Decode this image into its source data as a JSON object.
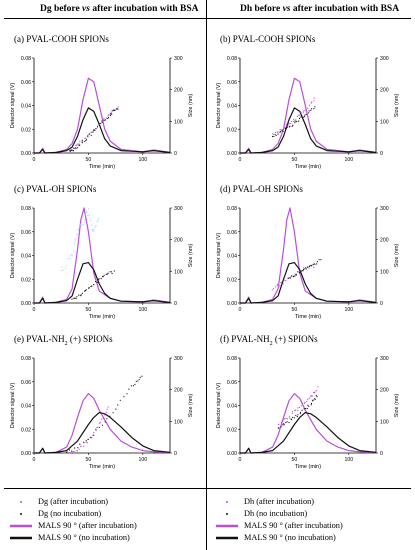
{
  "header": {
    "left_title": "Dg before vs after incubation with BSA",
    "right_title": "Dh before vs after incubation with BSA"
  },
  "axes": {
    "y_left_label": "Detector signal (V)",
    "y_right_label": "Size (nm)",
    "x_label": "Time (min)",
    "y_left_ticks": [
      "0.00",
      "0.02",
      "0.04",
      "0.06",
      "0.08"
    ],
    "y_right_ticks": [
      "0",
      "100",
      "200",
      "300"
    ],
    "x_ticks": [
      "0",
      "50",
      "100"
    ]
  },
  "colors": {
    "after": "#b94fd9",
    "none": "#111111",
    "after_dots_left": "#a9d6ff"
  },
  "legend": {
    "left": [
      "Dg (after incubation)",
      "Dg (no incubation)",
      "MALS 90 ° (after incubation)",
      "MALS 90 ° (no incubation)"
    ],
    "right": [
      "Dh (after incubation)",
      "Dh (no incubation)",
      "MALS 90 ° (after incubation)",
      "MALS 90 ° (no incubation)"
    ]
  },
  "chart_data": [
    {
      "panel_label": "(a) PVAL-COOH SPIONs",
      "type": "line",
      "xlim": [
        0,
        125
      ],
      "ylim": [
        0,
        0.08
      ],
      "y2lim": [
        0,
        300
      ],
      "series": [
        {
          "name": "MALS 90 ° (after incubation)",
          "axis": "left",
          "x": [
            0,
            5,
            8,
            10,
            20,
            30,
            35,
            40,
            45,
            50,
            55,
            60,
            65,
            70,
            80,
            100,
            110,
            125
          ],
          "y": [
            0.0,
            0.0,
            0.004,
            0.0,
            0.0005,
            0.003,
            0.008,
            0.02,
            0.045,
            0.063,
            0.06,
            0.04,
            0.02,
            0.01,
            0.003,
            0.001,
            0.0025,
            0.0005
          ]
        },
        {
          "name": "MALS 90 ° (no incubation)",
          "axis": "left",
          "x": [
            0,
            5,
            8,
            10,
            20,
            30,
            35,
            40,
            45,
            50,
            55,
            60,
            65,
            70,
            80,
            100,
            110,
            125
          ],
          "y": [
            0.0,
            0.0,
            0.003,
            0.0,
            0.0004,
            0.002,
            0.005,
            0.014,
            0.028,
            0.038,
            0.035,
            0.024,
            0.012,
            0.006,
            0.002,
            0.001,
            0.002,
            0.0004
          ]
        },
        {
          "name": "Dg (after incubation)",
          "axis": "right",
          "x": [
            33,
            40,
            50,
            60,
            70,
            78
          ],
          "y": [
            5,
            25,
            55,
            90,
            125,
            150
          ]
        },
        {
          "name": "Dg (no incubation)",
          "axis": "right",
          "x": [
            33,
            40,
            50,
            60,
            70,
            78
          ],
          "y": [
            3,
            20,
            50,
            85,
            120,
            145
          ]
        }
      ]
    },
    {
      "panel_label": "(b) PVAL-COOH SPIONs",
      "type": "line",
      "xlim": [
        0,
        125
      ],
      "ylim": [
        0,
        0.08
      ],
      "y2lim": [
        0,
        300
      ],
      "series": [
        {
          "name": "MALS 90 ° (after incubation)",
          "axis": "left",
          "x": [
            0,
            5,
            8,
            10,
            20,
            30,
            35,
            40,
            45,
            50,
            55,
            60,
            65,
            70,
            80,
            100,
            110,
            125
          ],
          "y": [
            0.0,
            0.0,
            0.004,
            0.0,
            0.0005,
            0.003,
            0.008,
            0.02,
            0.045,
            0.063,
            0.06,
            0.04,
            0.02,
            0.01,
            0.003,
            0.001,
            0.0025,
            0.0005
          ]
        },
        {
          "name": "MALS 90 ° (no incubation)",
          "axis": "left",
          "x": [
            0,
            5,
            8,
            10,
            20,
            30,
            35,
            40,
            45,
            50,
            55,
            60,
            65,
            70,
            80,
            100,
            110,
            125
          ],
          "y": [
            0.0,
            0.0,
            0.003,
            0.0,
            0.0004,
            0.002,
            0.005,
            0.014,
            0.028,
            0.038,
            0.035,
            0.024,
            0.012,
            0.006,
            0.002,
            0.001,
            0.002,
            0.0004
          ]
        },
        {
          "name": "Dh (after incubation)",
          "axis": "right",
          "x": [
            30,
            40,
            50,
            60,
            70
          ],
          "y": [
            60,
            80,
            105,
            135,
            175
          ]
        },
        {
          "name": "Dh (no incubation)",
          "axis": "right",
          "x": [
            30,
            40,
            50,
            60,
            70
          ],
          "y": [
            50,
            70,
            95,
            120,
            150
          ]
        }
      ]
    },
    {
      "panel_label": "(c) PVAL-OH SPIONs",
      "type": "line",
      "xlim": [
        0,
        125
      ],
      "ylim": [
        0,
        0.08
      ],
      "y2lim": [
        0,
        300
      ],
      "series": [
        {
          "name": "MALS 90 ° (after incubation)",
          "axis": "left",
          "x": [
            0,
            5,
            8,
            10,
            20,
            30,
            35,
            40,
            43,
            46,
            50,
            55,
            60,
            70,
            80,
            100,
            110,
            125
          ],
          "y": [
            0.0,
            0.0,
            0.005,
            0.0,
            0.0005,
            0.003,
            0.012,
            0.045,
            0.07,
            0.08,
            0.06,
            0.025,
            0.01,
            0.004,
            0.0015,
            0.001,
            0.0025,
            0.0005
          ]
        },
        {
          "name": "MALS 90 ° (no incubation)",
          "axis": "left",
          "x": [
            0,
            5,
            8,
            10,
            20,
            30,
            35,
            40,
            45,
            50,
            55,
            60,
            65,
            70,
            80,
            100,
            110,
            125
          ],
          "y": [
            0.0,
            0.0,
            0.004,
            0.0,
            0.0005,
            0.002,
            0.006,
            0.02,
            0.033,
            0.034,
            0.028,
            0.016,
            0.008,
            0.004,
            0.0015,
            0.001,
            0.002,
            0.0004
          ]
        },
        {
          "name": "Dg (after incubation)",
          "axis": "right",
          "x": [
            25,
            35,
            40,
            45,
            50,
            55,
            60
          ],
          "y": [
            100,
            150,
            220,
            260,
            290,
            220,
            280
          ]
        },
        {
          "name": "Dg (no incubation)",
          "axis": "right",
          "x": [
            35,
            45,
            55,
            65,
            75
          ],
          "y": [
            10,
            30,
            60,
            90,
            100
          ]
        }
      ]
    },
    {
      "panel_label": "(d) PVAL-OH SPIONs",
      "type": "line",
      "xlim": [
        0,
        125
      ],
      "ylim": [
        0,
        0.08
      ],
      "y2lim": [
        0,
        300
      ],
      "series": [
        {
          "name": "MALS 90 ° (after incubation)",
          "axis": "left",
          "x": [
            0,
            5,
            8,
            10,
            20,
            30,
            35,
            40,
            43,
            46,
            50,
            55,
            60,
            70,
            80,
            100,
            110,
            125
          ],
          "y": [
            0.0,
            0.0,
            0.005,
            0.0,
            0.0005,
            0.003,
            0.012,
            0.045,
            0.07,
            0.08,
            0.06,
            0.025,
            0.01,
            0.004,
            0.0015,
            0.001,
            0.0025,
            0.0005
          ]
        },
        {
          "name": "MALS 90 ° (no incubation)",
          "axis": "left",
          "x": [
            0,
            5,
            8,
            10,
            20,
            30,
            35,
            40,
            45,
            50,
            55,
            60,
            65,
            70,
            80,
            100,
            110,
            125
          ],
          "y": [
            0.0,
            0.0,
            0.004,
            0.0,
            0.0005,
            0.002,
            0.006,
            0.02,
            0.033,
            0.034,
            0.028,
            0.016,
            0.008,
            0.004,
            0.0015,
            0.001,
            0.002,
            0.0004
          ]
        },
        {
          "name": "Dh (after incubation)",
          "axis": "right",
          "x": [
            30,
            40,
            50,
            60,
            70
          ],
          "y": [
            45,
            65,
            90,
            110,
            120
          ]
        },
        {
          "name": "Dh (no incubation)",
          "axis": "right",
          "x": [
            45,
            55,
            65,
            75
          ],
          "y": [
            80,
            95,
            115,
            140
          ]
        }
      ]
    },
    {
      "panel_label": "(e) PVAL-NH2 (+) SPIONs",
      "type": "line",
      "xlim": [
        0,
        125
      ],
      "ylim": [
        0,
        0.08
      ],
      "y2lim": [
        0,
        300
      ],
      "series": [
        {
          "name": "MALS 90 ° (after incubation)",
          "axis": "left",
          "x": [
            0,
            5,
            8,
            10,
            20,
            30,
            35,
            40,
            45,
            50,
            55,
            60,
            70,
            80,
            90,
            100,
            110,
            125
          ],
          "y": [
            0.0,
            0.0,
            0.004,
            0.0,
            0.0005,
            0.005,
            0.015,
            0.03,
            0.044,
            0.05,
            0.046,
            0.036,
            0.02,
            0.01,
            0.005,
            0.002,
            0.001,
            0.0003
          ]
        },
        {
          "name": "MALS 90 ° (no incubation)",
          "axis": "left",
          "x": [
            0,
            5,
            8,
            10,
            20,
            30,
            40,
            50,
            55,
            60,
            65,
            70,
            80,
            90,
            100,
            110,
            125
          ],
          "y": [
            0.0,
            0.0,
            0.004,
            0.0,
            0.0005,
            0.002,
            0.01,
            0.024,
            0.03,
            0.034,
            0.033,
            0.03,
            0.022,
            0.013,
            0.006,
            0.002,
            0.0005
          ]
        },
        {
          "name": "Dg (after incubation)",
          "axis": "right",
          "x": [
            30,
            40,
            50,
            60,
            70
          ],
          "y": [
            0,
            10,
            40,
            90,
            150
          ]
        },
        {
          "name": "Dg (no incubation)",
          "axis": "right",
          "x": [
            30,
            50,
            70,
            90,
            100
          ],
          "y": [
            0,
            40,
            120,
            210,
            245
          ]
        }
      ]
    },
    {
      "panel_label": "(f) PVAL-NH2 (+) SPIONs",
      "type": "line",
      "xlim": [
        0,
        125
      ],
      "ylim": [
        0,
        0.08
      ],
      "y2lim": [
        0,
        300
      ],
      "series": [
        {
          "name": "MALS 90 ° (after incubation)",
          "axis": "left",
          "x": [
            0,
            5,
            8,
            10,
            20,
            30,
            35,
            40,
            45,
            50,
            55,
            60,
            70,
            80,
            90,
            100,
            110,
            125
          ],
          "y": [
            0.0,
            0.0,
            0.004,
            0.0,
            0.0005,
            0.005,
            0.015,
            0.03,
            0.044,
            0.05,
            0.046,
            0.036,
            0.02,
            0.01,
            0.005,
            0.002,
            0.001,
            0.0003
          ]
        },
        {
          "name": "MALS 90 ° (no incubation)",
          "axis": "left",
          "x": [
            0,
            5,
            8,
            10,
            20,
            30,
            40,
            50,
            55,
            60,
            65,
            70,
            80,
            90,
            100,
            110,
            125
          ],
          "y": [
            0.0,
            0.0,
            0.004,
            0.0,
            0.0005,
            0.002,
            0.01,
            0.024,
            0.03,
            0.034,
            0.033,
            0.03,
            0.022,
            0.013,
            0.006,
            0.002,
            0.0005
          ]
        },
        {
          "name": "Dh (after incubation)",
          "axis": "right",
          "x": [
            35,
            45,
            55,
            65,
            72
          ],
          "y": [
            90,
            115,
            145,
            175,
            210
          ]
        },
        {
          "name": "Dh (no incubation)",
          "axis": "right",
          "x": [
            35,
            45,
            55,
            65,
            72
          ],
          "y": [
            80,
            100,
            125,
            155,
            185
          ]
        }
      ]
    }
  ]
}
